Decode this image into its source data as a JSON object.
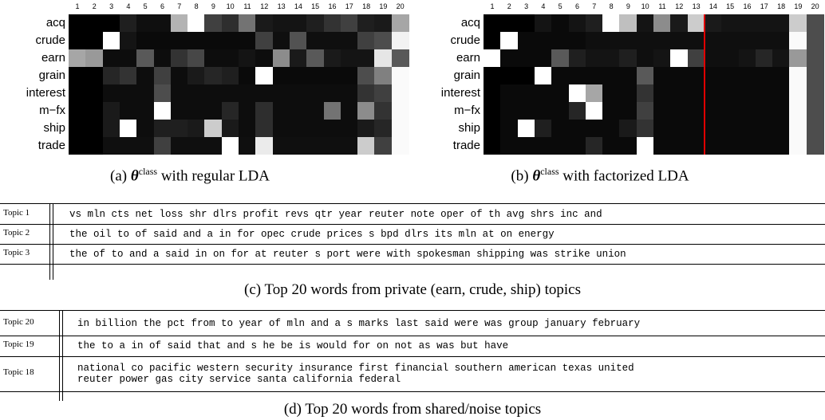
{
  "classes": [
    "acq",
    "crude",
    "earn",
    "grain",
    "interest",
    "m−fx",
    "ship",
    "trade"
  ],
  "topic_numbers": [
    "1",
    "2",
    "3",
    "4",
    "5",
    "6",
    "7",
    "8",
    "9",
    "10",
    "11",
    "12",
    "13",
    "14",
    "15",
    "16",
    "17",
    "18",
    "19",
    "20"
  ],
  "heatmap_a": [
    [
      0,
      0,
      0,
      0.12,
      0.06,
      0.06,
      0.7,
      1.0,
      0.25,
      0.18,
      0.45,
      0.1,
      0.08,
      0.08,
      0.12,
      0.2,
      0.25,
      0.12,
      0.1,
      0.65
    ],
    [
      0,
      0,
      1.0,
      0.08,
      0.04,
      0.04,
      0.04,
      0.04,
      0.04,
      0.04,
      0.04,
      0.25,
      0.06,
      0.32,
      0.06,
      0.06,
      0.06,
      0.25,
      0.3,
      0.95
    ],
    [
      0.65,
      0.6,
      0.05,
      0.05,
      0.35,
      0.05,
      0.2,
      0.28,
      0.05,
      0.05,
      0.08,
      0.05,
      0.55,
      0.1,
      0.35,
      0.1,
      0.08,
      0.08,
      0.9,
      0.35
    ],
    [
      0,
      0,
      0.15,
      0.2,
      0.05,
      0.25,
      0.05,
      0.1,
      0.15,
      0.12,
      0.04,
      1.0,
      0.04,
      0.04,
      0.04,
      0.04,
      0.04,
      0.3,
      0.5,
      0.98
    ],
    [
      0,
      0,
      0.05,
      0.05,
      0.05,
      0.3,
      0.05,
      0.05,
      0.05,
      0.05,
      0.05,
      0.05,
      0.05,
      0.05,
      0.05,
      0.05,
      0.05,
      0.2,
      0.25,
      0.98
    ],
    [
      0,
      0,
      0.1,
      0.05,
      0.05,
      1.0,
      0.05,
      0.05,
      0.05,
      0.15,
      0.05,
      0.18,
      0.05,
      0.05,
      0.05,
      0.45,
      0.05,
      0.55,
      0.2,
      0.98
    ],
    [
      0,
      0,
      0.1,
      1.0,
      0.05,
      0.12,
      0.12,
      0.1,
      0.8,
      0.1,
      0.05,
      0.18,
      0.05,
      0.05,
      0.05,
      0.05,
      0.05,
      0.1,
      0.15,
      0.98
    ],
    [
      0,
      0,
      0.06,
      0.06,
      0.06,
      0.25,
      0.06,
      0.06,
      0.06,
      1.0,
      0.06,
      0.92,
      0.06,
      0.06,
      0.06,
      0.06,
      0.06,
      0.8,
      0.25,
      0.98
    ]
  ],
  "heatmap_b": [
    [
      0,
      0,
      0,
      0.08,
      0.04,
      0.08,
      0.12,
      1.0,
      0.75,
      0.08,
      0.55,
      0.1,
      0.8,
      0.1,
      0.08,
      0.08,
      0.08,
      0.08,
      0.8,
      0.3
    ],
    [
      0,
      1.0,
      0.04,
      0.04,
      0.04,
      0.04,
      0.06,
      0.06,
      0.06,
      0.06,
      0.06,
      0.06,
      0.06,
      0.06,
      0.06,
      0.06,
      0.06,
      0.06,
      0.98,
      0.3
    ],
    [
      1.0,
      0.04,
      0.04,
      0.04,
      0.35,
      0.12,
      0.08,
      0.08,
      0.12,
      0.06,
      0.08,
      1.0,
      0.25,
      0.06,
      0.06,
      0.08,
      0.15,
      0.08,
      0.6,
      0.3
    ],
    [
      0,
      0,
      0,
      1.0,
      0.04,
      0.04,
      0.04,
      0.04,
      0.04,
      0.35,
      0.04,
      0.04,
      0.04,
      0.04,
      0.04,
      0.04,
      0.04,
      0.04,
      0.98,
      0.3
    ],
    [
      0,
      0.04,
      0.04,
      0.04,
      0.04,
      1.0,
      0.65,
      0.04,
      0.04,
      0.2,
      0.04,
      0.04,
      0.04,
      0.04,
      0.04,
      0.04,
      0.04,
      0.04,
      0.98,
      0.3
    ],
    [
      0,
      0.04,
      0.04,
      0.04,
      0.04,
      0.15,
      1.0,
      0.04,
      0.04,
      0.25,
      0.04,
      0.04,
      0.04,
      0.04,
      0.04,
      0.04,
      0.04,
      0.04,
      0.98,
      0.3
    ],
    [
      0,
      0.04,
      1.0,
      0.12,
      0.04,
      0.04,
      0.04,
      0.04,
      0.1,
      0.2,
      0.04,
      0.04,
      0.04,
      0.04,
      0.04,
      0.04,
      0.04,
      0.04,
      0.98,
      0.3
    ],
    [
      0,
      0.04,
      0.04,
      0.04,
      0.04,
      0.04,
      0.15,
      0.04,
      0.04,
      1.0,
      0.04,
      0.04,
      0.04,
      0.04,
      0.04,
      0.04,
      0.04,
      0.04,
      0.98,
      0.3
    ]
  ],
  "caption_a": "(a) θclass with regular LDA",
  "caption_a_parts": {
    "prefix": "(a) ",
    "theta": "θ",
    "sup": "class",
    "suffix": " with regular LDA"
  },
  "caption_b_parts": {
    "prefix": "(b) ",
    "theta": "θ",
    "sup": "class",
    "suffix": " with factorized LDA"
  },
  "table_c": {
    "rows": [
      {
        "label": "Topic 1",
        "words": "vs mln cts net loss shr dlrs profit revs qtr year reuter note oper of th avg shrs inc and"
      },
      {
        "label": "Topic 2",
        "words": "the oil to of said and a in for opec crude prices s bpd dlrs its mln at on energy"
      },
      {
        "label": "Topic 3",
        "words": "the of to and a said in on for at reuter s port were with spokesman shipping was strike union"
      }
    ],
    "caption": "(c) Top 20 words from private (earn, crude, ship) topics"
  },
  "table_d": {
    "rows": [
      {
        "label": "Topic 20",
        "words": "in billion the pct from to year of mln and a s marks last said were was group january february"
      },
      {
        "label": "Topic 19",
        "words": "the to a in of said that and s he be is would for on not as was but have"
      },
      {
        "label": "Topic 18",
        "words": "national co pacific western security insurance first financial southern american texas united\nreuter power gas city service santa california federal"
      }
    ],
    "caption": "(d) Top 20 words from shared/noise topics"
  }
}
